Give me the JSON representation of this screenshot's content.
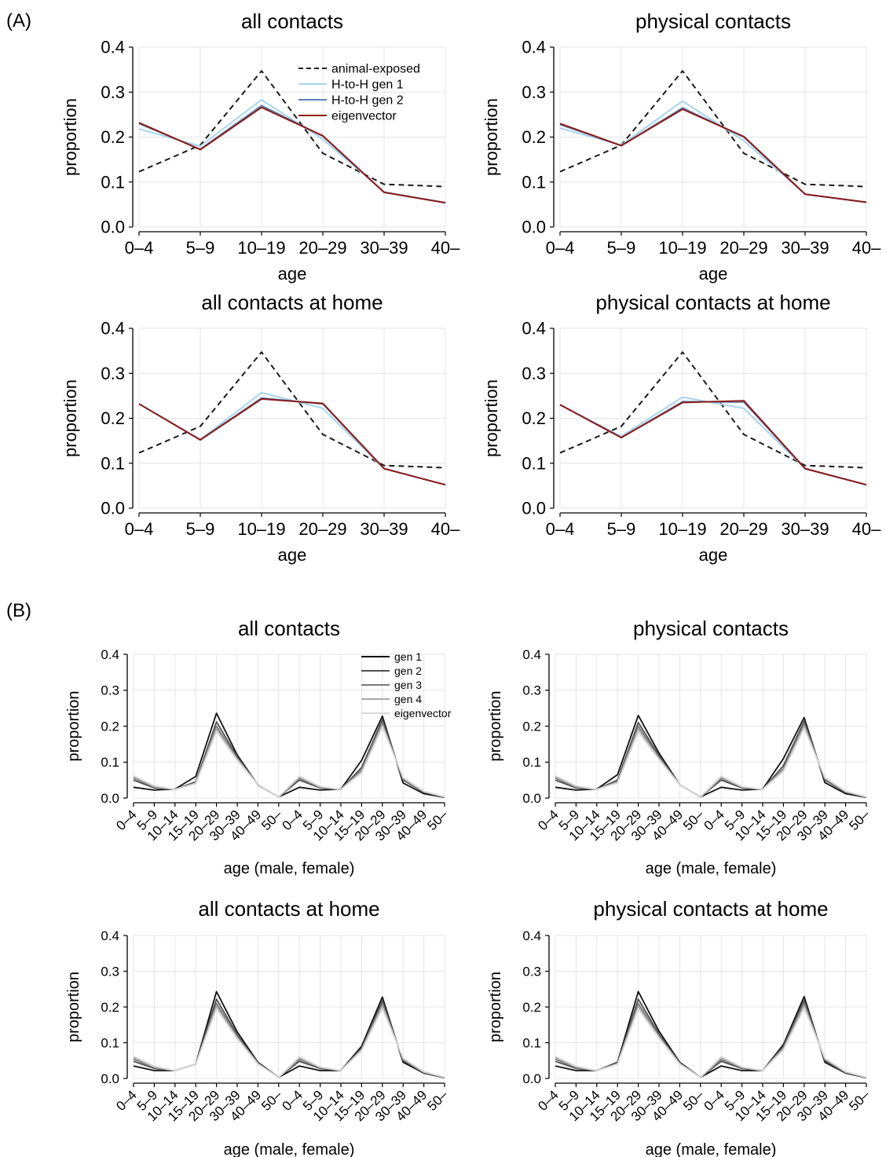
{
  "panel_labels": {
    "A": "(A)",
    "B": "(B)"
  },
  "chart_data": [
    {
      "type": "line",
      "title": "all contacts",
      "xlabel": "age",
      "ylabel": "proportion",
      "categories": [
        "0–4",
        "5–9",
        "10–19",
        "20–29",
        "30–39",
        "40–"
      ],
      "ylim": [
        0,
        0.4
      ],
      "yticks": [
        "0.0",
        "0.1",
        "0.2",
        "0.3",
        "0.4"
      ],
      "grid": true,
      "legend": "top-right",
      "series": [
        {
          "name": "animal-exposed",
          "color": "#1a1a1a",
          "dashed": true,
          "values": [
            0.123,
            0.182,
            0.347,
            0.164,
            0.095,
            0.09
          ]
        },
        {
          "name": "H-to-H gen 1",
          "color": "#a8d4ec",
          "values": [
            0.218,
            0.18,
            0.283,
            0.195,
            0.078,
            0.054
          ]
        },
        {
          "name": "H-to-H gen 2",
          "color": "#5b86b8",
          "values": [
            0.23,
            0.173,
            0.27,
            0.202,
            0.077,
            0.054
          ]
        },
        {
          "name": "eigenvector",
          "color": "#8b1a1a",
          "values": [
            0.232,
            0.172,
            0.266,
            0.203,
            0.077,
            0.054
          ]
        }
      ]
    },
    {
      "type": "line",
      "title": "physical contacts",
      "xlabel": "age",
      "ylabel": "proportion",
      "categories": [
        "0–4",
        "5–9",
        "10–19",
        "20–29",
        "30–39",
        "40–"
      ],
      "ylim": [
        0,
        0.4
      ],
      "yticks": [
        "0.0",
        "0.1",
        "0.2",
        "0.3",
        "0.4"
      ],
      "grid": true,
      "series": [
        {
          "color": "#1a1a1a",
          "dashed": true,
          "values": [
            0.123,
            0.182,
            0.347,
            0.164,
            0.095,
            0.09
          ]
        },
        {
          "color": "#a8d4ec",
          "values": [
            0.22,
            0.182,
            0.28,
            0.192,
            0.073,
            0.055
          ]
        },
        {
          "color": "#5b86b8",
          "values": [
            0.228,
            0.181,
            0.265,
            0.2,
            0.073,
            0.055
          ]
        },
        {
          "color": "#8b1a1a",
          "values": [
            0.23,
            0.181,
            0.262,
            0.201,
            0.073,
            0.055
          ]
        }
      ]
    },
    {
      "type": "line",
      "title": "all contacts at home",
      "xlabel": "age",
      "ylabel": "proportion",
      "categories": [
        "0–4",
        "5–9",
        "10–19",
        "20–29",
        "30–39",
        "40–"
      ],
      "ylim": [
        0,
        0.4
      ],
      "yticks": [
        "0.0",
        "0.1",
        "0.2",
        "0.3",
        "0.4"
      ],
      "grid": true,
      "series": [
        {
          "color": "#1a1a1a",
          "dashed": true,
          "values": [
            0.123,
            0.182,
            0.347,
            0.164,
            0.095,
            0.09
          ]
        },
        {
          "color": "#a8d4ec",
          "values": [
            0.232,
            0.153,
            0.257,
            0.222,
            0.088,
            0.052
          ]
        },
        {
          "color": "#5b86b8",
          "values": [
            0.232,
            0.152,
            0.245,
            0.232,
            0.088,
            0.052
          ]
        },
        {
          "color": "#8b1a1a",
          "values": [
            0.232,
            0.152,
            0.243,
            0.233,
            0.088,
            0.052
          ]
        }
      ]
    },
    {
      "type": "line",
      "title": "physical contacts at home",
      "xlabel": "age",
      "ylabel": "proportion",
      "categories": [
        "0–4",
        "5–9",
        "10–19",
        "20–29",
        "30–39",
        "40–"
      ],
      "ylim": [
        0,
        0.4
      ],
      "yticks": [
        "0.0",
        "0.1",
        "0.2",
        "0.3",
        "0.4"
      ],
      "grid": true,
      "series": [
        {
          "color": "#1a1a1a",
          "dashed": true,
          "values": [
            0.123,
            0.182,
            0.347,
            0.164,
            0.095,
            0.09
          ]
        },
        {
          "color": "#a8d4ec",
          "values": [
            0.23,
            0.16,
            0.247,
            0.222,
            0.088,
            0.052
          ]
        },
        {
          "color": "#5b86b8",
          "values": [
            0.23,
            0.157,
            0.237,
            0.236,
            0.088,
            0.052
          ]
        },
        {
          "color": "#8b1a1a",
          "values": [
            0.23,
            0.157,
            0.235,
            0.239,
            0.088,
            0.052
          ]
        }
      ]
    },
    {
      "type": "line",
      "title": "all contacts",
      "xlabel": "age (male, female)",
      "ylabel": "proportion",
      "categories": [
        "0–4",
        "5–9",
        "10–14",
        "15–19",
        "20–29",
        "30–39",
        "40–49",
        "50–",
        "0–4",
        "5–9",
        "10–14",
        "15–19",
        "20–29",
        "30–39",
        "40–49",
        "50–"
      ],
      "ylim": [
        0,
        0.4
      ],
      "yticks": [
        "0.0",
        "0.1",
        "0.2",
        "0.3",
        "0.4"
      ],
      "grid": true,
      "legend": "top-right",
      "series": [
        {
          "name": "gen 1",
          "color": "#111111",
          "values": [
            0.03,
            0.022,
            0.025,
            0.06,
            0.236,
            0.12,
            0.036,
            0.003,
            0.03,
            0.022,
            0.025,
            0.105,
            0.228,
            0.042,
            0.012,
            0.002
          ]
        },
        {
          "name": "gen 2",
          "color": "#505050",
          "values": [
            0.05,
            0.028,
            0.024,
            0.045,
            0.212,
            0.115,
            0.037,
            0.003,
            0.05,
            0.028,
            0.024,
            0.085,
            0.218,
            0.05,
            0.016,
            0.003
          ]
        },
        {
          "name": "gen 3",
          "color": "#7a7a7a",
          "values": [
            0.056,
            0.03,
            0.024,
            0.042,
            0.2,
            0.11,
            0.037,
            0.003,
            0.055,
            0.03,
            0.024,
            0.078,
            0.21,
            0.053,
            0.017,
            0.003
          ]
        },
        {
          "name": "gen 4",
          "color": "#a8a8a8",
          "values": [
            0.059,
            0.032,
            0.024,
            0.041,
            0.193,
            0.108,
            0.037,
            0.003,
            0.058,
            0.031,
            0.024,
            0.074,
            0.204,
            0.055,
            0.018,
            0.003
          ]
        },
        {
          "name": "eigenvector",
          "color": "#d9d9d9",
          "values": [
            0.062,
            0.034,
            0.024,
            0.04,
            0.185,
            0.105,
            0.037,
            0.003,
            0.061,
            0.032,
            0.024,
            0.07,
            0.198,
            0.057,
            0.019,
            0.003
          ]
        }
      ]
    },
    {
      "type": "line",
      "title": "physical contacts",
      "xlabel": "age (male, female)",
      "ylabel": "proportion",
      "categories": [
        "0–4",
        "5–9",
        "10–14",
        "15–19",
        "20–29",
        "30–39",
        "40–49",
        "50–",
        "0–4",
        "5–9",
        "10–14",
        "15–19",
        "20–29",
        "30–39",
        "40–49",
        "50–"
      ],
      "ylim": [
        0,
        0.4
      ],
      "yticks": [
        "0.0",
        "0.1",
        "0.2",
        "0.3",
        "0.4"
      ],
      "grid": true,
      "series": [
        {
          "color": "#111111",
          "values": [
            0.03,
            0.022,
            0.025,
            0.065,
            0.23,
            0.125,
            0.037,
            0.003,
            0.03,
            0.022,
            0.025,
            0.11,
            0.224,
            0.043,
            0.012,
            0.002
          ]
        },
        {
          "color": "#505050",
          "values": [
            0.05,
            0.028,
            0.024,
            0.05,
            0.21,
            0.118,
            0.037,
            0.003,
            0.05,
            0.028,
            0.024,
            0.09,
            0.214,
            0.05,
            0.016,
            0.003
          ]
        },
        {
          "color": "#7a7a7a",
          "values": [
            0.056,
            0.03,
            0.024,
            0.046,
            0.2,
            0.113,
            0.037,
            0.003,
            0.055,
            0.03,
            0.024,
            0.082,
            0.207,
            0.053,
            0.017,
            0.003
          ]
        },
        {
          "color": "#a8a8a8",
          "values": [
            0.059,
            0.032,
            0.024,
            0.044,
            0.192,
            0.11,
            0.037,
            0.003,
            0.058,
            0.031,
            0.024,
            0.078,
            0.2,
            0.055,
            0.018,
            0.003
          ]
        },
        {
          "color": "#d9d9d9",
          "values": [
            0.062,
            0.034,
            0.024,
            0.042,
            0.184,
            0.107,
            0.037,
            0.003,
            0.061,
            0.032,
            0.024,
            0.074,
            0.194,
            0.057,
            0.019,
            0.003
          ]
        }
      ]
    },
    {
      "type": "line",
      "title": "all contacts at home",
      "xlabel": "age (male, female)",
      "ylabel": "proportion",
      "categories": [
        "0–4",
        "5–9",
        "10–14",
        "15–19",
        "20–29",
        "30–39",
        "40–49",
        "50–",
        "0–4",
        "5–9",
        "10–14",
        "15–19",
        "20–29",
        "30–39",
        "40–49",
        "50–"
      ],
      "ylim": [
        0,
        0.4
      ],
      "yticks": [
        "0.0",
        "0.1",
        "0.2",
        "0.3",
        "0.4"
      ],
      "grid": true,
      "series": [
        {
          "color": "#111111",
          "values": [
            0.035,
            0.022,
            0.022,
            0.04,
            0.243,
            0.13,
            0.045,
            0.003,
            0.035,
            0.022,
            0.022,
            0.09,
            0.228,
            0.045,
            0.015,
            0.002
          ]
        },
        {
          "color": "#505050",
          "values": [
            0.048,
            0.028,
            0.022,
            0.04,
            0.222,
            0.122,
            0.043,
            0.003,
            0.048,
            0.028,
            0.022,
            0.085,
            0.218,
            0.05,
            0.016,
            0.003
          ]
        },
        {
          "color": "#7a7a7a",
          "values": [
            0.054,
            0.03,
            0.022,
            0.04,
            0.21,
            0.117,
            0.042,
            0.003,
            0.053,
            0.03,
            0.022,
            0.082,
            0.21,
            0.053,
            0.017,
            0.003
          ]
        },
        {
          "color": "#a8a8a8",
          "values": [
            0.058,
            0.032,
            0.022,
            0.04,
            0.202,
            0.114,
            0.041,
            0.003,
            0.057,
            0.031,
            0.022,
            0.08,
            0.203,
            0.055,
            0.018,
            0.003
          ]
        },
        {
          "color": "#d9d9d9",
          "values": [
            0.062,
            0.034,
            0.022,
            0.04,
            0.195,
            0.111,
            0.04,
            0.003,
            0.061,
            0.032,
            0.022,
            0.078,
            0.196,
            0.057,
            0.019,
            0.003
          ]
        }
      ]
    },
    {
      "type": "line",
      "title": "physical contacts at home",
      "xlabel": "age (male, female)",
      "ylabel": "proportion",
      "categories": [
        "0–4",
        "5–9",
        "10–14",
        "15–19",
        "20–29",
        "30–39",
        "40–49",
        "50–",
        "0–4",
        "5–9",
        "10–14",
        "15–19",
        "20–29",
        "30–39",
        "40–49",
        "50–"
      ],
      "ylim": [
        0,
        0.4
      ],
      "yticks": [
        "0.0",
        "0.1",
        "0.2",
        "0.3",
        "0.4"
      ],
      "grid": true,
      "series": [
        {
          "color": "#111111",
          "values": [
            0.035,
            0.022,
            0.022,
            0.045,
            0.243,
            0.132,
            0.045,
            0.003,
            0.035,
            0.022,
            0.022,
            0.095,
            0.229,
            0.045,
            0.015,
            0.002
          ]
        },
        {
          "color": "#505050",
          "values": [
            0.048,
            0.028,
            0.022,
            0.043,
            0.222,
            0.124,
            0.043,
            0.003,
            0.048,
            0.028,
            0.022,
            0.09,
            0.219,
            0.05,
            0.016,
            0.003
          ]
        },
        {
          "color": "#7a7a7a",
          "values": [
            0.054,
            0.03,
            0.022,
            0.042,
            0.21,
            0.119,
            0.042,
            0.003,
            0.053,
            0.03,
            0.022,
            0.086,
            0.211,
            0.053,
            0.017,
            0.003
          ]
        },
        {
          "color": "#a8a8a8",
          "values": [
            0.058,
            0.032,
            0.022,
            0.041,
            0.202,
            0.116,
            0.041,
            0.003,
            0.057,
            0.031,
            0.022,
            0.083,
            0.204,
            0.055,
            0.018,
            0.003
          ]
        },
        {
          "color": "#d9d9d9",
          "values": [
            0.062,
            0.034,
            0.022,
            0.04,
            0.195,
            0.113,
            0.04,
            0.003,
            0.061,
            0.032,
            0.022,
            0.08,
            0.197,
            0.057,
            0.019,
            0.003
          ]
        }
      ]
    }
  ]
}
